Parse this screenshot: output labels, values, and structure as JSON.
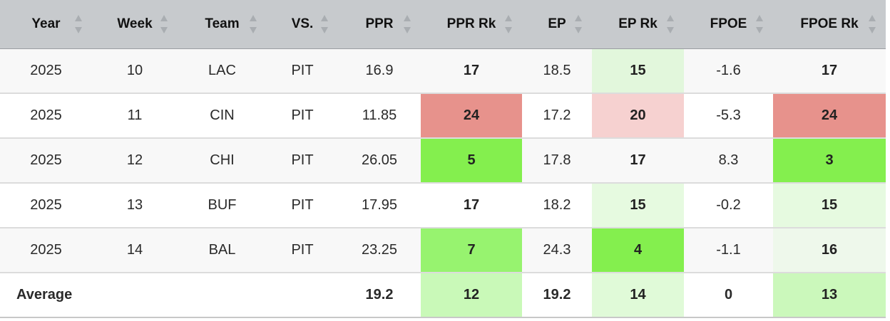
{
  "columns": [
    {
      "key": "year",
      "label": "Year"
    },
    {
      "key": "week",
      "label": "Week"
    },
    {
      "key": "team",
      "label": "Team"
    },
    {
      "key": "vs",
      "label": "VS."
    },
    {
      "key": "ppr",
      "label": "PPR"
    },
    {
      "key": "ppr_rk",
      "label": "PPR Rk"
    },
    {
      "key": "ep",
      "label": "EP"
    },
    {
      "key": "ep_rk",
      "label": "EP Rk"
    },
    {
      "key": "fpoe",
      "label": "FPOE"
    },
    {
      "key": "fpoe_rk",
      "label": "FPOE Rk"
    }
  ],
  "rows": [
    {
      "year": "2025",
      "week": "10",
      "team": "LAC",
      "vs": "PIT",
      "ppr": "16.9",
      "ppr_rk": "17",
      "ep": "18.5",
      "ep_rk": "15",
      "fpoe": "-1.6",
      "fpoe_rk": "17"
    },
    {
      "year": "2025",
      "week": "11",
      "team": "CIN",
      "vs": "PIT",
      "ppr": "11.85",
      "ppr_rk": "24",
      "ep": "17.2",
      "ep_rk": "20",
      "fpoe": "-5.3",
      "fpoe_rk": "24"
    },
    {
      "year": "2025",
      "week": "12",
      "team": "CHI",
      "vs": "PIT",
      "ppr": "26.05",
      "ppr_rk": "5",
      "ep": "17.8",
      "ep_rk": "17",
      "fpoe": "8.3",
      "fpoe_rk": "3"
    },
    {
      "year": "2025",
      "week": "13",
      "team": "BUF",
      "vs": "PIT",
      "ppr": "17.95",
      "ppr_rk": "17",
      "ep": "18.2",
      "ep_rk": "15",
      "fpoe": "-0.2",
      "fpoe_rk": "15"
    },
    {
      "year": "2025",
      "week": "14",
      "team": "BAL",
      "vs": "PIT",
      "ppr": "23.25",
      "ppr_rk": "7",
      "ep": "24.3",
      "ep_rk": "4",
      "fpoe": "-1.1",
      "fpoe_rk": "16"
    }
  ],
  "average": {
    "label": "Average",
    "ppr": "19.2",
    "ppr_rk": "12",
    "ep": "19.2",
    "ep_rk": "14",
    "fpoe": "0",
    "fpoe_rk": "13"
  },
  "cell_colors": {
    "rows": [
      {
        "ppr_rk": "",
        "ep_rk": "#e2f7dc",
        "fpoe_rk": ""
      },
      {
        "ppr_rk": "#e7928c",
        "ep_rk": "#f6d1d0",
        "fpoe_rk": "#e7928c"
      },
      {
        "ppr_rk": "#84ef4e",
        "ep_rk": "",
        "fpoe_rk": "#84ef4e"
      },
      {
        "ppr_rk": "",
        "ep_rk": "#e6fae0",
        "fpoe_rk": "#e6fae0"
      },
      {
        "ppr_rk": "#97f36f",
        "ep_rk": "#84ef4e",
        "fpoe_rk": "#eef8eb"
      }
    ],
    "average": {
      "ppr_rk": "#c9f9b8",
      "ep_rk": "#e0fad8",
      "fpoe_rk": "#cbf8bb"
    }
  },
  "colors": {
    "header_bg": "#c7cacd",
    "sort_arrow": "#a9adb1"
  },
  "icons": {
    "sort": "sort-arrows-icon"
  }
}
